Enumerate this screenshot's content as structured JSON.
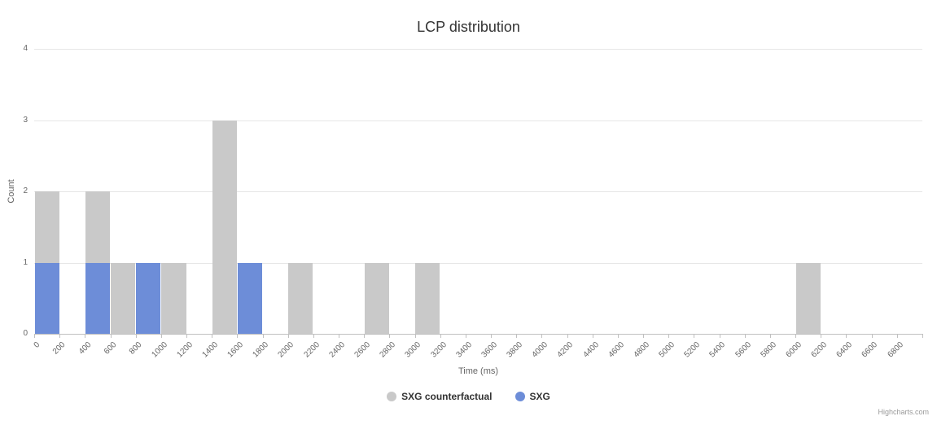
{
  "chart_data": {
    "type": "bar",
    "title": "LCP distribution",
    "xlabel": "Time (ms)",
    "ylabel": "Count",
    "categories": [
      0,
      200,
      400,
      600,
      800,
      1000,
      1200,
      1400,
      1600,
      1800,
      2000,
      2200,
      2400,
      2600,
      2800,
      3000,
      3200,
      3400,
      3600,
      3800,
      4000,
      4200,
      4400,
      4600,
      4800,
      5000,
      5200,
      5400,
      5600,
      5800,
      6000,
      6200,
      6400,
      6600,
      6800
    ],
    "series": [
      {
        "name": "SXG counterfactual",
        "color": "#c9c9c9",
        "values": [
          2,
          0,
          2,
          1,
          0,
          1,
          0,
          3,
          0,
          0,
          1,
          0,
          0,
          1,
          0,
          1,
          0,
          0,
          0,
          0,
          0,
          0,
          0,
          0,
          0,
          0,
          0,
          0,
          0,
          0,
          1,
          0,
          0,
          0,
          0
        ]
      },
      {
        "name": "SXG",
        "color": "#6d8dd8",
        "values": [
          1,
          0,
          1,
          0,
          1,
          0,
          0,
          0,
          1,
          0,
          0,
          0,
          0,
          0,
          0,
          0,
          0,
          0,
          0,
          0,
          0,
          0,
          0,
          0,
          0,
          0,
          0,
          0,
          0,
          0,
          0,
          0,
          0,
          0,
          0
        ]
      }
    ],
    "ylim": [
      0,
      4
    ],
    "yticks": [
      0,
      1,
      2,
      3,
      4
    ],
    "grid": true,
    "legend_position": "bottom",
    "bar_layout": "overlaid-histogram"
  },
  "credits": "Highcharts.com"
}
